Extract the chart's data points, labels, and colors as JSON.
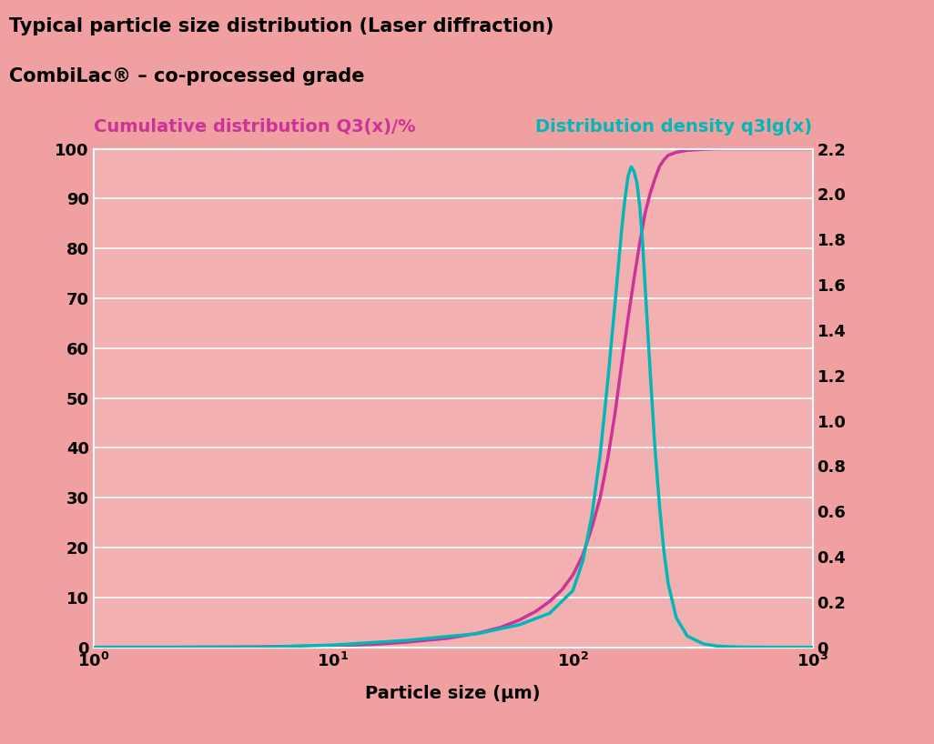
{
  "title_line1": "Typical particle size distribution (Laser diffraction)",
  "title_line2": "CombiLac® – co-processed grade",
  "left_axis_label": "Cumulative distribution Q3(x)/%",
  "right_axis_label": "Distribution density q3lg(x)",
  "xlabel": "Particle size (µm)",
  "bg_color_top": "#f0a0a0",
  "bg_color_mid": "#f5caca",
  "bg_color_plot": "#f2b0b0",
  "cumulative_color": "#cc3399",
  "density_color": "#00b8b8",
  "left_yticks": [
    0,
    10,
    20,
    30,
    40,
    50,
    60,
    70,
    80,
    90,
    100
  ],
  "right_yticks": [
    0,
    0.2,
    0.4,
    0.6,
    0.8,
    1.0,
    1.2,
    1.4,
    1.6,
    1.8,
    2.0,
    2.2
  ],
  "xlim": [
    1,
    1000
  ],
  "left_ylim": [
    0,
    100
  ],
  "right_ylim": [
    0,
    2.2
  ],
  "cumulative_x": [
    1,
    2,
    5,
    10,
    15,
    20,
    30,
    40,
    50,
    60,
    70,
    80,
    90,
    100,
    110,
    120,
    130,
    140,
    150,
    160,
    170,
    180,
    190,
    200,
    210,
    220,
    230,
    240,
    250,
    270,
    300,
    350,
    400,
    500,
    700,
    1000
  ],
  "cumulative_y": [
    0,
    0,
    0.1,
    0.3,
    0.6,
    1.0,
    1.8,
    2.8,
    4.0,
    5.5,
    7.2,
    9.2,
    11.5,
    14.5,
    18.5,
    24,
    30,
    38,
    47,
    57,
    66,
    74,
    81,
    87,
    91,
    94,
    96.5,
    97.8,
    98.7,
    99.3,
    99.7,
    99.9,
    100,
    100,
    100,
    100
  ],
  "density_x": [
    1,
    5,
    10,
    20,
    40,
    60,
    80,
    100,
    110,
    120,
    130,
    140,
    150,
    160,
    165,
    170,
    175,
    180,
    185,
    190,
    195,
    200,
    210,
    220,
    230,
    240,
    250,
    270,
    300,
    350,
    400,
    500,
    700,
    1000
  ],
  "density_y": [
    0,
    0,
    0.01,
    0.03,
    0.06,
    0.1,
    0.15,
    0.25,
    0.38,
    0.58,
    0.85,
    1.18,
    1.52,
    1.85,
    1.98,
    2.08,
    2.12,
    2.1,
    2.05,
    1.95,
    1.8,
    1.6,
    1.22,
    0.88,
    0.62,
    0.42,
    0.28,
    0.13,
    0.05,
    0.015,
    0.005,
    0.001,
    0,
    0
  ]
}
